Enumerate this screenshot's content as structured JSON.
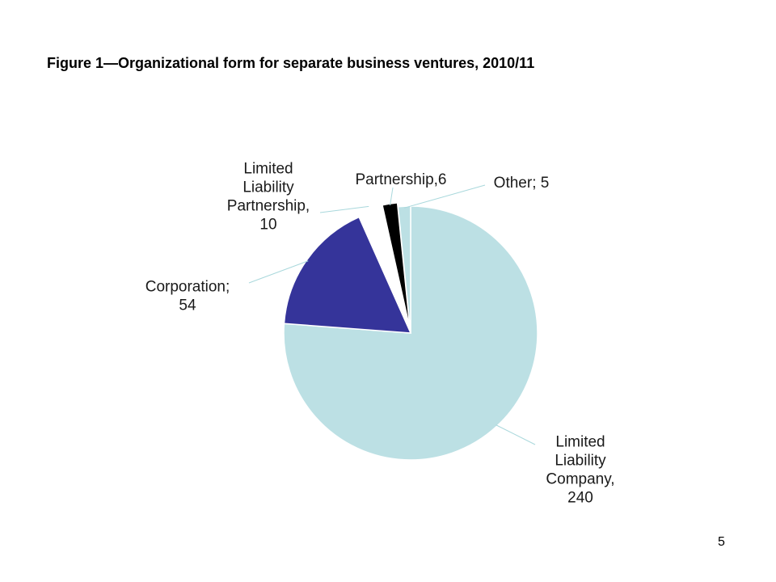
{
  "page": {
    "title": "Figure 1—Organizational form for separate business ventures, 2010/11",
    "page_number": "5"
  },
  "chart_data": {
    "type": "pie",
    "title": "Figure 1—Organizational form for separate business ventures, 2010/11",
    "slices": [
      {
        "name": "Limited Liability Company",
        "value": 240,
        "color": "#bce0e4",
        "label_lines": [
          "Limited",
          "Liability",
          "Company,",
          "240"
        ]
      },
      {
        "name": "Corporation",
        "value": 54,
        "color": "#35349a",
        "label_lines": [
          "Corporation;",
          "54"
        ]
      },
      {
        "name": "Limited Liability Partnership",
        "value": 10,
        "color": "#ffffff",
        "label_lines": [
          "Limited",
          "Liability",
          "Partnership,",
          "10"
        ]
      },
      {
        "name": "Partnership",
        "value": 6,
        "color": "#000000",
        "label_lines": [
          "Partnership,6"
        ]
      },
      {
        "name": "Other",
        "value": 5,
        "color": "#bce0e4",
        "label_lines": [
          "Other; 5"
        ]
      }
    ],
    "start": "top",
    "direction": "clockwise",
    "legend": "none",
    "leader_line_color": "#a9d8dc"
  }
}
